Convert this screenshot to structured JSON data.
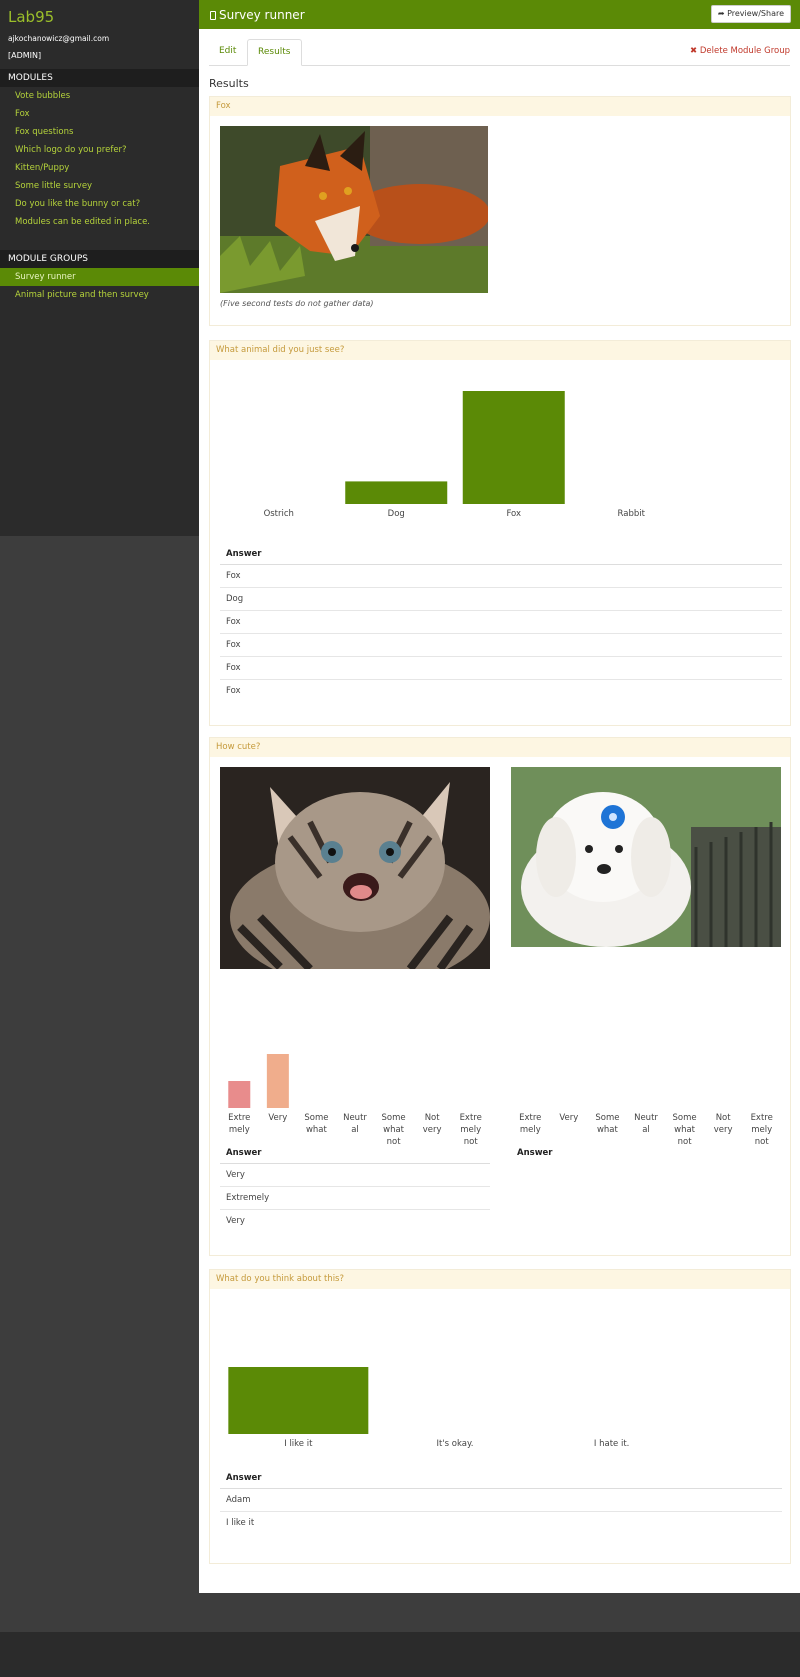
{
  "app": {
    "brand": "Lab95",
    "email": "ajkochanowicz@gmail.com",
    "role": "[ADMIN]"
  },
  "sidebar": {
    "modules_heading": "MODULES",
    "modules": [
      "Vote bubbles",
      "Fox",
      "Fox questions",
      "Which logo do you prefer?",
      "Kitten/Puppy",
      "Some little survey",
      "Do you like the bunny or cat?",
      "Modules can be edited in place."
    ],
    "groups_heading": "MODULE GROUPS",
    "groups": [
      "Survey runner",
      "Animal picture and then survey"
    ],
    "active_group": "Survey runner"
  },
  "header": {
    "title": "Survey runner",
    "preview_label": "Preview/Share"
  },
  "tabs": {
    "edit": "Edit",
    "results": "Results",
    "active": "Results",
    "delete_label": "Delete Module Group"
  },
  "results_title": "Results",
  "panels": {
    "fox": {
      "title": "Fox",
      "note": "(Five second tests do not gather data)"
    },
    "animal": {
      "title": "What animal did you just see?",
      "answer_header": "Answer",
      "answers": [
        "Fox",
        "Dog",
        "Fox",
        "Fox",
        "Fox",
        "Fox"
      ]
    },
    "cute": {
      "title": "How cute?",
      "answer_header_left": "Answer",
      "answer_header_right": "Answer",
      "answers_left": [
        "Very",
        "Extremely",
        "Very"
      ]
    },
    "think": {
      "title": "What do you think about this?",
      "answer_header": "Answer",
      "answers": [
        "Adam",
        "I like it"
      ]
    }
  },
  "colors": {
    "accent": "#5b8a06",
    "link": "#b5d33b",
    "panel_head_bg": "#fdf6e2",
    "panel_head_text": "#c59a3c",
    "delete": "#c0392b"
  },
  "chart_data": [
    {
      "type": "bar",
      "categories": [
        "Ostrich",
        "Dog",
        "Fox",
        "Rabbit"
      ],
      "values": [
        0,
        1,
        5,
        0
      ],
      "color": "#5b8a06"
    },
    {
      "type": "bar",
      "categories": [
        "Extre mely",
        "Very",
        "Some what",
        "Neutr al",
        "Some what not",
        "Not very",
        "Extre mely not"
      ],
      "values": [
        1,
        2,
        0,
        0,
        0,
        0,
        0
      ],
      "colors": [
        "#e88c8c",
        "#f0ad8c"
      ]
    },
    {
      "type": "bar",
      "categories": [
        "Extre mely",
        "Very",
        "Some what",
        "Neutr al",
        "Some what not",
        "Not very",
        "Extre mely not"
      ],
      "values": [
        0,
        0,
        0,
        0,
        0,
        0,
        0
      ]
    },
    {
      "type": "bar",
      "categories": [
        "I like it",
        "It's okay.",
        "I hate it."
      ],
      "values": [
        1,
        0,
        0
      ],
      "color": "#5b8a06"
    }
  ]
}
